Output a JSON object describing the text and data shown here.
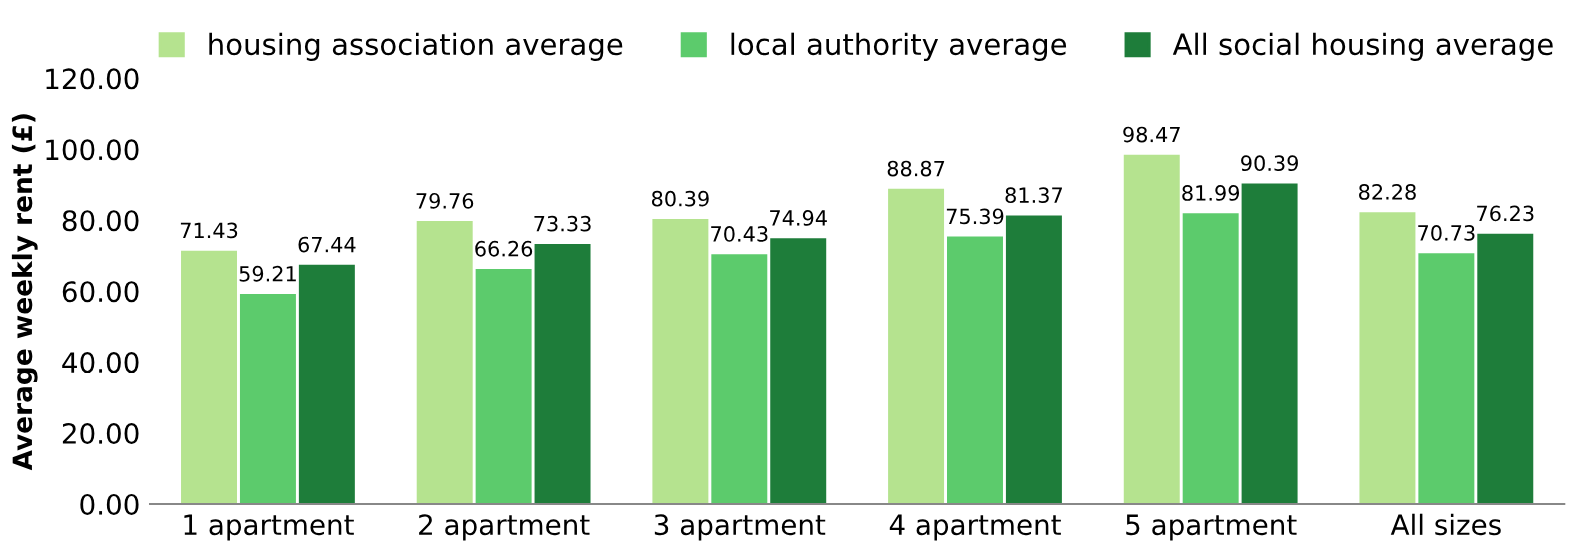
{
  "chart_data": {
    "type": "bar",
    "ylabel": "Average weekly rent (£)",
    "categories": [
      "1 apartment",
      "2 apartment",
      "3 apartment",
      "4 apartment",
      "5 apartment",
      "All sizes"
    ],
    "series": [
      {
        "name": "housing association average",
        "color": "#b5e38f",
        "values": [
          71.43,
          79.76,
          80.39,
          88.87,
          98.47,
          82.28
        ]
      },
      {
        "name": "local authority average",
        "color": "#5ccb6c",
        "values": [
          59.21,
          66.26,
          70.43,
          75.39,
          81.99,
          70.73
        ]
      },
      {
        "name": "All social housing average",
        "color": "#1e7d3a",
        "values": [
          67.44,
          73.33,
          74.94,
          81.37,
          90.39,
          76.23
        ]
      }
    ],
    "ylim": [
      0,
      120
    ],
    "yticks": [
      {
        "value": 0,
        "label": "0.00"
      },
      {
        "value": 20,
        "label": "20.00"
      },
      {
        "value": 40,
        "label": "40.00"
      },
      {
        "value": 60,
        "label": "60.00"
      },
      {
        "value": 80,
        "label": "80.00"
      },
      {
        "value": 100,
        "label": "100.00"
      },
      {
        "value": 120,
        "label": "120.00"
      }
    ],
    "data_labels": true,
    "legend": "top",
    "grid": false
  }
}
